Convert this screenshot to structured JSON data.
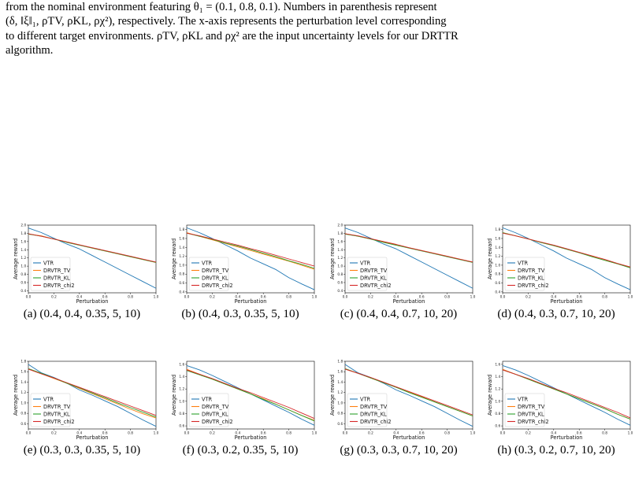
{
  "caption": {
    "line1": "from the nominal environment featuring θ₁ = (0.1, 0.8, 0.1). Numbers in parenthesis represent",
    "line2": "(δ, ‖ξ‖₁, ρTV, ρKL, ρχ²), respectively. The x-axis represents the perturbation level corresponding",
    "line3": "to different target environments. ρTV, ρKL and ρχ² are the input uncertainty levels for our DRTTR",
    "line4": "algorithm."
  },
  "colors": {
    "VTR": "#1f77b4",
    "DRVTR_TV": "#ff7f0e",
    "DRVTR_KL": "#2ca02c",
    "DRVTR_chi2": "#d62728"
  },
  "chart_data": [
    {
      "type": "line",
      "subcaption": "(a) (0.4, 0.4, 0.35, 5, 10)",
      "xlabel": "Perturbation",
      "ylabel": "Average reward",
      "xlim": [
        0.0,
        1.0
      ],
      "ylim": [
        0.35,
        2.0
      ],
      "xticks": [
        "0.0",
        "0.2",
        "0.4",
        "0.6",
        "0.8",
        "1.0"
      ],
      "yticks": [
        "0.4",
        "0.6",
        "0.8",
        "1.0",
        "1.2",
        "1.4",
        "1.6",
        "1.8",
        "2.0"
      ],
      "legend": "bottom-left",
      "grid": false,
      "x": [
        0.0,
        0.1,
        0.2,
        0.3,
        0.4,
        0.5,
        0.6,
        0.7,
        0.8,
        0.9,
        1.0
      ],
      "series": [
        {
          "name": "VTR",
          "values": [
            1.93,
            1.82,
            1.68,
            1.54,
            1.42,
            1.26,
            1.1,
            0.94,
            0.78,
            0.62,
            0.46
          ]
        },
        {
          "name": "DRVTR_TV",
          "values": [
            1.78,
            1.74,
            1.66,
            1.59,
            1.52,
            1.44,
            1.37,
            1.3,
            1.23,
            1.16,
            1.09
          ]
        },
        {
          "name": "DRVTR_KL",
          "values": [
            1.78,
            1.73,
            1.66,
            1.58,
            1.51,
            1.44,
            1.37,
            1.3,
            1.23,
            1.16,
            1.09
          ]
        },
        {
          "name": "DRVTR_chi2",
          "values": [
            1.79,
            1.73,
            1.66,
            1.59,
            1.52,
            1.45,
            1.38,
            1.31,
            1.24,
            1.17,
            1.1
          ]
        }
      ]
    },
    {
      "type": "line",
      "subcaption": "(b) (0.4, 0.3, 0.35, 5, 10)",
      "xlabel": "Perturbation",
      "ylabel": "Average reward",
      "xlim": [
        0.0,
        1.0
      ],
      "ylim": [
        0.38,
        1.9
      ],
      "xticks": [
        "0.0",
        "0.2",
        "0.4",
        "0.6",
        "0.8",
        "1.0"
      ],
      "yticks": [
        "0.4",
        "0.6",
        "0.8",
        "1.0",
        "1.2",
        "1.4",
        "1.6",
        "1.8"
      ],
      "legend": "bottom-left",
      "grid": false,
      "x": [
        0.0,
        0.1,
        0.2,
        0.3,
        0.4,
        0.5,
        0.6,
        0.7,
        0.8,
        0.9,
        1.0
      ],
      "series": [
        {
          "name": "VTR",
          "values": [
            1.84,
            1.73,
            1.6,
            1.46,
            1.32,
            1.16,
            1.03,
            0.9,
            0.72,
            0.58,
            0.45
          ]
        },
        {
          "name": "DRVTR_TV",
          "values": [
            1.73,
            1.65,
            1.57,
            1.49,
            1.41,
            1.33,
            1.25,
            1.17,
            1.09,
            1.0,
            0.91
          ]
        },
        {
          "name": "DRVTR_KL",
          "values": [
            1.72,
            1.65,
            1.58,
            1.5,
            1.43,
            1.35,
            1.27,
            1.19,
            1.1,
            1.02,
            0.93
          ]
        },
        {
          "name": "DRVTR_chi2",
          "values": [
            1.72,
            1.66,
            1.59,
            1.52,
            1.45,
            1.37,
            1.3,
            1.22,
            1.14,
            1.06,
            0.98
          ]
        }
      ]
    },
    {
      "type": "line",
      "subcaption": "(c) (0.4, 0.4, 0.7, 10, 20)",
      "xlabel": "Perturbation",
      "ylabel": "Average reward",
      "xlim": [
        0.0,
        1.0
      ],
      "ylim": [
        0.35,
        2.0
      ],
      "xticks": [
        "0.0",
        "0.2",
        "0.4",
        "0.6",
        "0.8",
        "1.0"
      ],
      "yticks": [
        "0.4",
        "0.6",
        "0.8",
        "1.0",
        "1.2",
        "1.4",
        "1.6",
        "1.8",
        "2.0"
      ],
      "legend": "bottom-left",
      "grid": false,
      "x": [
        0.0,
        0.1,
        0.2,
        0.3,
        0.4,
        0.5,
        0.6,
        0.7,
        0.8,
        0.9,
        1.0
      ],
      "series": [
        {
          "name": "VTR",
          "values": [
            1.93,
            1.82,
            1.68,
            1.54,
            1.42,
            1.26,
            1.1,
            0.94,
            0.78,
            0.62,
            0.46
          ]
        },
        {
          "name": "DRVTR_TV",
          "values": [
            1.79,
            1.73,
            1.66,
            1.59,
            1.52,
            1.45,
            1.38,
            1.31,
            1.24,
            1.17,
            1.1
          ]
        },
        {
          "name": "DRVTR_KL",
          "values": [
            1.78,
            1.73,
            1.66,
            1.58,
            1.51,
            1.44,
            1.37,
            1.3,
            1.23,
            1.16,
            1.09
          ]
        },
        {
          "name": "DRVTR_chi2",
          "values": [
            1.79,
            1.74,
            1.67,
            1.6,
            1.53,
            1.45,
            1.38,
            1.31,
            1.24,
            1.17,
            1.1
          ]
        }
      ]
    },
    {
      "type": "line",
      "subcaption": "(d) (0.4, 0.3, 0.7, 10, 20)",
      "xlabel": "Perturbation",
      "ylabel": "Average reward",
      "xlim": [
        0.0,
        1.0
      ],
      "ylim": [
        0.38,
        1.9
      ],
      "xticks": [
        "0.0",
        "0.2",
        "0.4",
        "0.6",
        "0.8",
        "1.0"
      ],
      "yticks": [
        "0.4",
        "0.6",
        "0.8",
        "1.0",
        "1.2",
        "1.4",
        "1.6",
        "1.8"
      ],
      "legend": "bottom-left",
      "grid": false,
      "x": [
        0.0,
        0.1,
        0.2,
        0.3,
        0.4,
        0.5,
        0.6,
        0.7,
        0.8,
        0.9,
        1.0
      ],
      "series": [
        {
          "name": "VTR",
          "values": [
            1.84,
            1.73,
            1.6,
            1.46,
            1.32,
            1.16,
            1.03,
            0.9,
            0.72,
            0.58,
            0.45
          ]
        },
        {
          "name": "DRVTR_TV",
          "values": [
            1.73,
            1.66,
            1.59,
            1.51,
            1.44,
            1.36,
            1.28,
            1.2,
            1.11,
            1.03,
            0.95
          ]
        },
        {
          "name": "DRVTR_KL",
          "values": [
            1.73,
            1.66,
            1.59,
            1.51,
            1.44,
            1.36,
            1.28,
            1.19,
            1.11,
            1.03,
            0.94
          ]
        },
        {
          "name": "DRVTR_chi2",
          "values": [
            1.72,
            1.66,
            1.59,
            1.52,
            1.45,
            1.37,
            1.29,
            1.21,
            1.13,
            1.04,
            0.96
          ]
        }
      ]
    },
    {
      "type": "line",
      "subcaption": "(e) (0.3, 0.3, 0.35, 5, 10)",
      "xlabel": "Perturbation",
      "ylabel": "Average reward",
      "xlim": [
        0.0,
        1.0
      ],
      "ylim": [
        0.5,
        1.8
      ],
      "xticks": [
        "0.0",
        "0.2",
        "0.4",
        "0.6",
        "0.8",
        "1.0"
      ],
      "yticks": [
        "0.6",
        "0.8",
        "1.0",
        "1.2",
        "1.4",
        "1.6",
        "1.8"
      ],
      "legend": "bottom-left",
      "grid": false,
      "x": [
        0.0,
        0.1,
        0.2,
        0.3,
        0.4,
        0.5,
        0.6,
        0.7,
        0.8,
        0.9,
        1.0
      ],
      "series": [
        {
          "name": "VTR",
          "values": [
            1.74,
            1.58,
            1.49,
            1.38,
            1.25,
            1.15,
            1.04,
            0.93,
            0.8,
            0.67,
            0.55
          ]
        },
        {
          "name": "DRVTR_TV",
          "values": [
            1.65,
            1.56,
            1.47,
            1.38,
            1.28,
            1.18,
            1.08,
            0.98,
            0.88,
            0.79,
            0.71
          ]
        },
        {
          "name": "DRVTR_KL",
          "values": [
            1.66,
            1.57,
            1.48,
            1.38,
            1.29,
            1.19,
            1.1,
            1.0,
            0.91,
            0.82,
            0.73
          ]
        },
        {
          "name": "DRVTR_chi2",
          "values": [
            1.65,
            1.56,
            1.48,
            1.39,
            1.3,
            1.21,
            1.12,
            1.03,
            0.94,
            0.85,
            0.76
          ]
        }
      ]
    },
    {
      "type": "line",
      "subcaption": "(f) (0.3, 0.2, 0.35, 5, 10)",
      "xlabel": "Perturbation",
      "ylabel": "Average reward",
      "xlim": [
        0.0,
        1.0
      ],
      "ylim": [
        0.55,
        1.65
      ],
      "xticks": [
        "0.0",
        "0.2",
        "0.4",
        "0.6",
        "0.8",
        "1.0"
      ],
      "yticks": [
        "0.6",
        "0.8",
        "1.0",
        "1.2",
        "1.4",
        "1.6"
      ],
      "legend": "bottom-left",
      "grid": false,
      "x": [
        0.0,
        0.1,
        0.2,
        0.3,
        0.4,
        0.5,
        0.6,
        0.7,
        0.8,
        0.9,
        1.0
      ],
      "series": [
        {
          "name": "VTR",
          "values": [
            1.58,
            1.51,
            1.42,
            1.32,
            1.22,
            1.12,
            1.02,
            0.92,
            0.82,
            0.71,
            0.61
          ]
        },
        {
          "name": "DRVTR_TV",
          "values": [
            1.52,
            1.44,
            1.36,
            1.28,
            1.2,
            1.12,
            1.04,
            0.95,
            0.86,
            0.77,
            0.69
          ]
        },
        {
          "name": "DRVTR_KL",
          "values": [
            1.5,
            1.43,
            1.36,
            1.28,
            1.2,
            1.12,
            1.03,
            0.95,
            0.86,
            0.77,
            0.68
          ]
        },
        {
          "name": "DRVTR_chi2",
          "values": [
            1.51,
            1.44,
            1.37,
            1.29,
            1.21,
            1.14,
            1.06,
            0.98,
            0.9,
            0.81,
            0.72
          ]
        }
      ]
    },
    {
      "type": "line",
      "subcaption": "(g) (0.3, 0.3, 0.7, 10, 20)",
      "xlabel": "Perturbation",
      "ylabel": "Average reward",
      "xlim": [
        0.0,
        1.0
      ],
      "ylim": [
        0.5,
        1.8
      ],
      "xticks": [
        "0.0",
        "0.2",
        "0.4",
        "0.6",
        "0.8",
        "1.0"
      ],
      "yticks": [
        "0.6",
        "0.8",
        "1.0",
        "1.2",
        "1.4",
        "1.6",
        "1.8"
      ],
      "legend": "bottom-left",
      "grid": false,
      "x": [
        0.0,
        0.1,
        0.2,
        0.3,
        0.4,
        0.5,
        0.6,
        0.7,
        0.8,
        0.9,
        1.0
      ],
      "series": [
        {
          "name": "VTR",
          "values": [
            1.74,
            1.58,
            1.49,
            1.38,
            1.25,
            1.15,
            1.04,
            0.93,
            0.8,
            0.67,
            0.55
          ]
        },
        {
          "name": "DRVTR_TV",
          "values": [
            1.65,
            1.57,
            1.48,
            1.39,
            1.3,
            1.21,
            1.12,
            1.02,
            0.93,
            0.84,
            0.75
          ]
        },
        {
          "name": "DRVTR_KL",
          "values": [
            1.66,
            1.57,
            1.48,
            1.39,
            1.3,
            1.2,
            1.11,
            1.02,
            0.93,
            0.84,
            0.75
          ]
        },
        {
          "name": "DRVTR_chi2",
          "values": [
            1.65,
            1.57,
            1.49,
            1.4,
            1.31,
            1.22,
            1.13,
            1.04,
            0.95,
            0.86,
            0.77
          ]
        }
      ]
    },
    {
      "type": "line",
      "subcaption": "(h) (0.3, 0.2, 0.7, 10, 20)",
      "xlabel": "Perturbation",
      "ylabel": "Average reward",
      "xlim": [
        0.0,
        1.0
      ],
      "ylim": [
        0.55,
        1.65
      ],
      "xticks": [
        "0.0",
        "0.2",
        "0.4",
        "0.6",
        "0.8",
        "1.0"
      ],
      "yticks": [
        "0.6",
        "0.8",
        "1.0",
        "1.2",
        "1.4",
        "1.6"
      ],
      "legend": "bottom-left",
      "grid": false,
      "x": [
        0.0,
        0.1,
        0.2,
        0.3,
        0.4,
        0.5,
        0.6,
        0.7,
        0.8,
        0.9,
        1.0
      ],
      "series": [
        {
          "name": "VTR",
          "values": [
            1.58,
            1.51,
            1.42,
            1.32,
            1.22,
            1.12,
            1.02,
            0.92,
            0.82,
            0.71,
            0.61
          ]
        },
        {
          "name": "DRVTR_TV",
          "values": [
            1.52,
            1.44,
            1.36,
            1.28,
            1.2,
            1.12,
            1.04,
            0.96,
            0.88,
            0.79,
            0.71
          ]
        },
        {
          "name": "DRVTR_KL",
          "values": [
            1.51,
            1.44,
            1.36,
            1.28,
            1.2,
            1.12,
            1.04,
            0.96,
            0.88,
            0.79,
            0.71
          ]
        },
        {
          "name": "DRVTR_chi2",
          "values": [
            1.51,
            1.44,
            1.37,
            1.29,
            1.21,
            1.14,
            1.06,
            0.98,
            0.9,
            0.82,
            0.73
          ]
        }
      ]
    }
  ]
}
